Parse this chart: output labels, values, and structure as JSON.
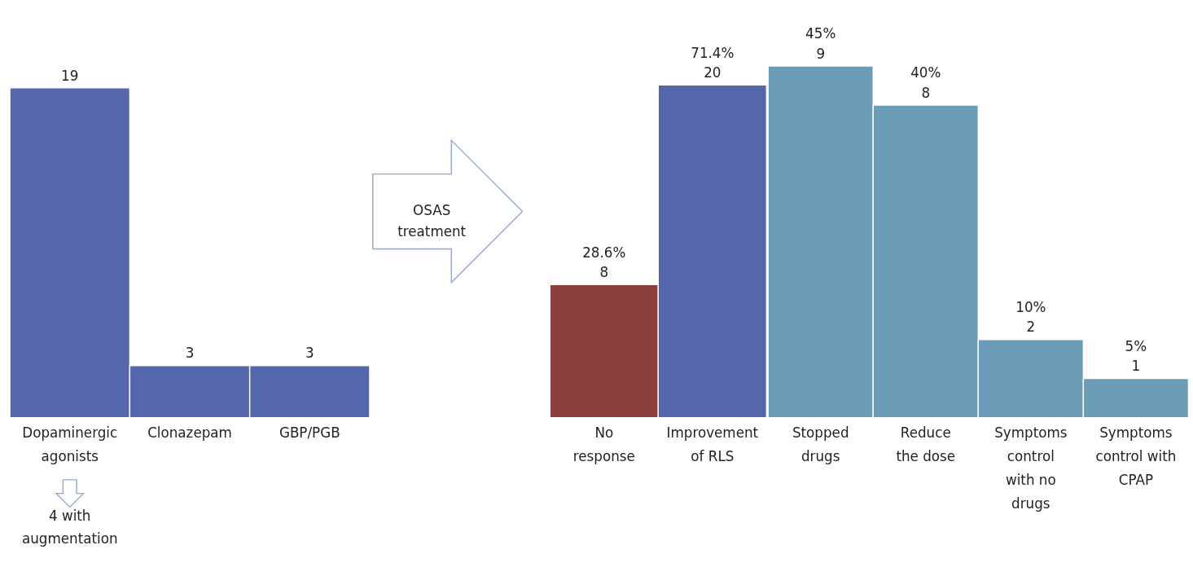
{
  "chart_data": [
    {
      "type": "bar",
      "categories": [
        "Dopaminergic\nagonists",
        "Clonazepam",
        "GBP/PGB"
      ],
      "values": [
        19,
        3,
        3
      ],
      "colors": [
        "#5567ab",
        "#5567ab",
        "#5567ab"
      ],
      "data_labels": true,
      "annotations": [
        "4 with\naugmentation"
      ]
    },
    {
      "type": "bar",
      "categories": [
        "No\nresponse",
        "Improvement\nof RLS"
      ],
      "values": [
        8,
        20
      ],
      "colors": [
        "#8b3e3c",
        "#5567ab"
      ],
      "value_labels": [
        "28.6%\n8",
        "71.4%\n20"
      ],
      "annotations": [
        "OSAS\ntreatment"
      ]
    },
    {
      "type": "bar",
      "categories": [
        "Stopped\ndrugs",
        "Reduce\nthe dose",
        "Symptoms\ncontrol\nwith no\ndrugs",
        "Symptoms\ncontrol with\nCPAP"
      ],
      "values": [
        9,
        8,
        2,
        1
      ],
      "colors": [
        "#6a9cb8",
        "#6a9cb8",
        "#6a9cb8",
        "#6a9cb8"
      ],
      "value_labels": [
        "45%\n9",
        "40%\n8",
        "10%\n2",
        "5%\n1"
      ]
    }
  ]
}
